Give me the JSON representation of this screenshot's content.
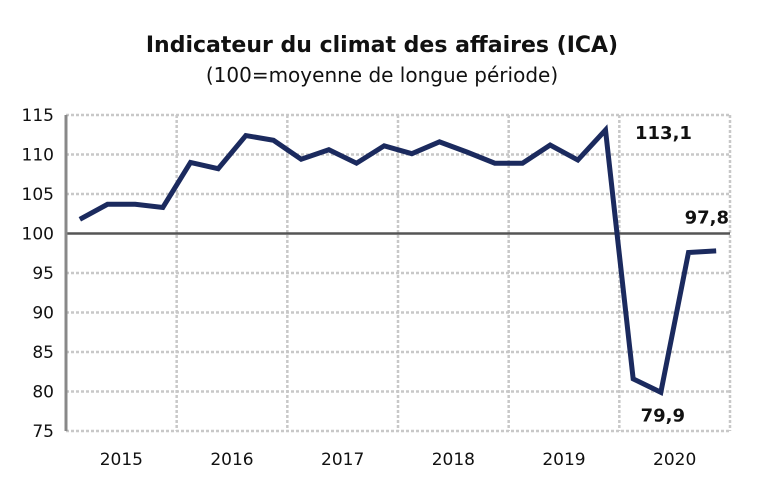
{
  "chart_data": {
    "type": "line",
    "title": "Indicateur du climat des affaires (ICA)",
    "subtitle": "(100=moyenne de longue période)",
    "xlabel": "",
    "ylabel": "",
    "ylim": [
      75,
      115
    ],
    "yticks": [
      "75",
      "80",
      "85",
      "90",
      "95",
      "100",
      "105",
      "110",
      "115"
    ],
    "xticks": [
      "2015",
      "2016",
      "2017",
      "2018",
      "2019",
      "2020"
    ],
    "grid": true,
    "reference_line": 100,
    "x": [
      "2015T1",
      "2015T2",
      "2015T3",
      "2015T4",
      "2016T1",
      "2016T2",
      "2016T3",
      "2016T4",
      "2017T1",
      "2017T2",
      "2017T3",
      "2017T4",
      "2018T1",
      "2018T2",
      "2018T3",
      "2018T4",
      "2019T1",
      "2019T2",
      "2019T3",
      "2019T4",
      "2020T1",
      "2020T2",
      "2020T3",
      "2020T4"
    ],
    "series": [
      {
        "color": "#1b2a5e",
        "values": [
          101.8,
          103.7,
          103.7,
          103.3,
          109.0,
          108.2,
          112.4,
          111.8,
          109.4,
          110.6,
          108.9,
          111.1,
          110.1,
          111.6,
          110.3,
          108.9,
          108.9,
          111.2,
          109.3,
          113.1,
          81.6,
          79.9,
          97.6,
          97.8
        ]
      }
    ],
    "annotations": [
      {
        "text": "113,1",
        "index": 19
      },
      {
        "text": "79,9",
        "index": 21
      },
      {
        "text": "97,8",
        "index": 23
      }
    ]
  }
}
